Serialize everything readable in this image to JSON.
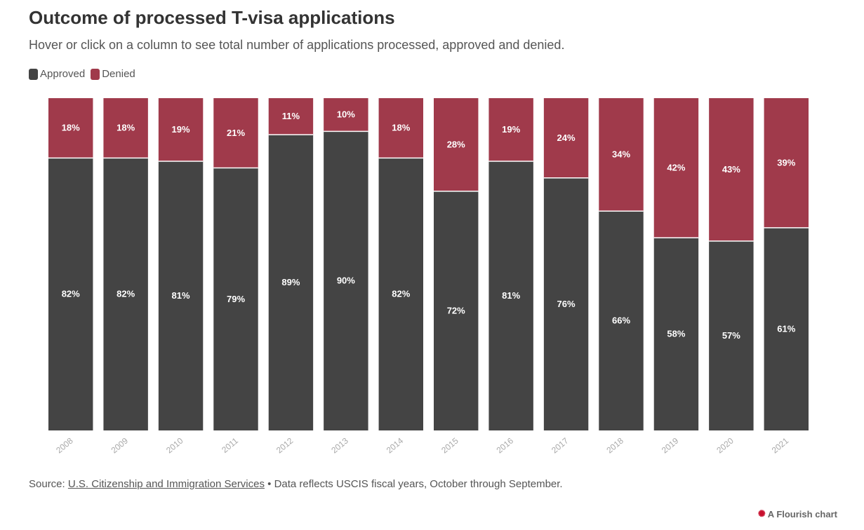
{
  "colors": {
    "approved": "#444444",
    "denied": "#a03a4b"
  },
  "legend": {
    "approved_label": "Approved",
    "denied_label": "Denied"
  },
  "footer": {
    "source_prefix": "Source:",
    "source_link": "U.S. Citizenship and Immigration Services",
    "separator": " • ",
    "note": "Data reflects USCIS fiscal years, October through September."
  },
  "credit": {
    "icon": "flourish-logo-icon",
    "text": "A Flourish chart"
  },
  "chart_data": {
    "type": "bar",
    "stacked": true,
    "percent": true,
    "title": "Outcome of processed T-visa applications",
    "subtitle": "Hover or click on a column to see total number of applications processed, approved and denied.",
    "xlabel": "",
    "ylabel": "",
    "ylim": [
      0,
      100
    ],
    "grid": false,
    "legend_position": "top-left",
    "categories": [
      "2008",
      "2009",
      "2010",
      "2011",
      "2012",
      "2013",
      "2014",
      "2015",
      "2016",
      "2017",
      "2018",
      "2019",
      "2020",
      "2021"
    ],
    "series": [
      {
        "name": "Approved",
        "values": [
          82,
          82,
          81,
          79,
          89,
          90,
          82,
          72,
          81,
          76,
          66,
          58,
          57,
          61
        ],
        "labels": [
          "82%",
          "82%",
          "81%",
          "79%",
          "89%",
          "90%",
          "82%",
          "72%",
          "81%",
          "76%",
          "66%",
          "58%",
          "57%",
          "61%"
        ]
      },
      {
        "name": "Denied",
        "values": [
          18,
          18,
          19,
          21,
          11,
          10,
          18,
          28,
          19,
          24,
          34,
          42,
          43,
          39
        ],
        "labels": [
          "18%",
          "18%",
          "19%",
          "21%",
          "11%",
          "10%",
          "18%",
          "28%",
          "19%",
          "24%",
          "34%",
          "42%",
          "43%",
          "39%"
        ]
      }
    ]
  }
}
